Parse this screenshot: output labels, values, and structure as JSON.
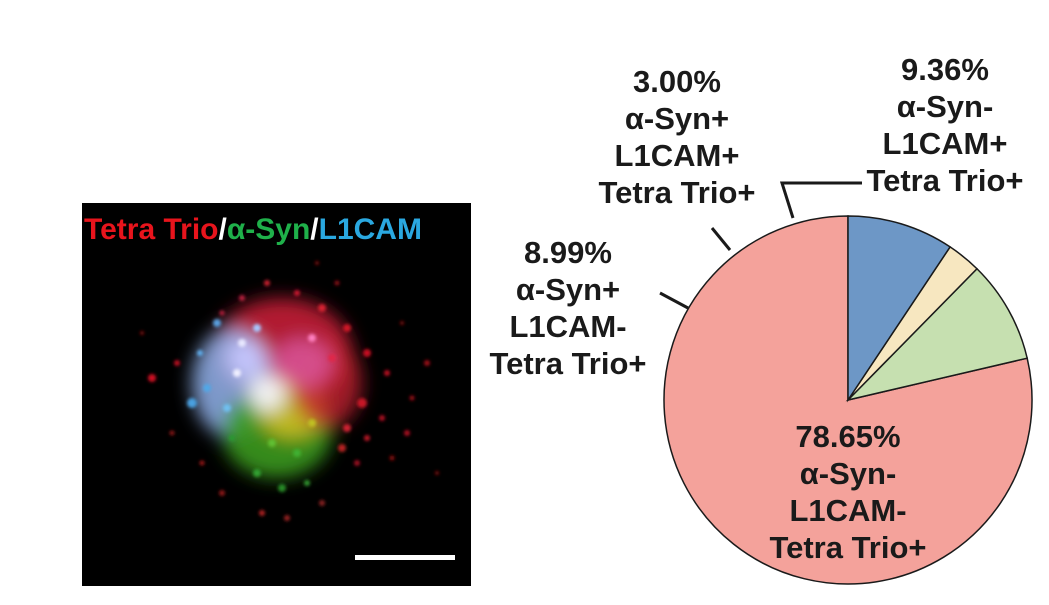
{
  "micrograph": {
    "legend": {
      "part1": "Tetra Trio",
      "sep1": "/",
      "part2": "α-Syn",
      "sep2": "/",
      "part3": "L1CAM"
    },
    "legend_colors": {
      "tetra_trio": "#e8141c",
      "a_syn": "#1fb04a",
      "l1cam": "#2aa8e0"
    }
  },
  "chart_data": {
    "type": "pie",
    "start": "12 o'clock",
    "direction": "counterclockwise",
    "slices": [
      {
        "value": 78.65,
        "pct": "78.65%",
        "lines": [
          "α-Syn-",
          "L1CAM-",
          "Tetra Trio+"
        ],
        "color": "#f4a29b"
      },
      {
        "value": 8.99,
        "pct": "8.99%",
        "lines": [
          "α-Syn+",
          "L1CAM-",
          "Tetra Trio+"
        ],
        "color": "#c6e0b0"
      },
      {
        "value": 3.0,
        "pct": "3.00%",
        "lines": [
          "α-Syn+",
          "L1CAM+",
          "Tetra Trio+"
        ],
        "color": "#f7e7c0"
      },
      {
        "value": 9.36,
        "pct": "9.36%",
        "lines": [
          "α-Syn-",
          "L1CAM+",
          "Tetra Trio+"
        ],
        "color": "#6d97c6"
      }
    ]
  }
}
